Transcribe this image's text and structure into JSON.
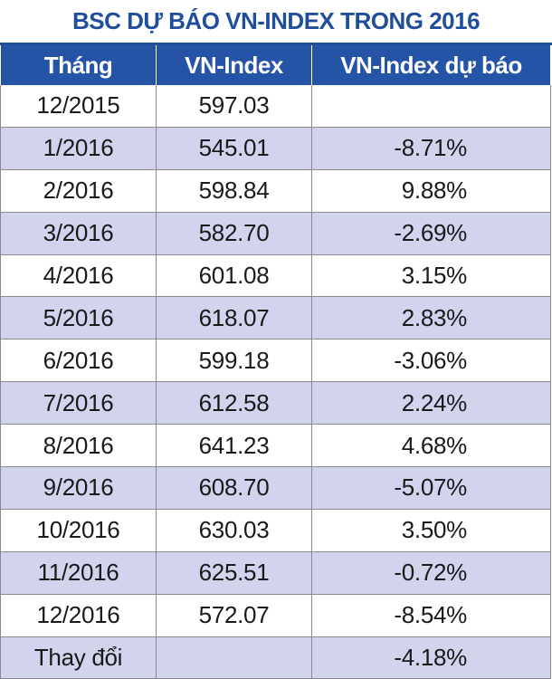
{
  "title": "BSC DỰ BÁO VN-INDEX TRONG 2016",
  "colors": {
    "title": "#1f4e9c",
    "header_bg": "#2553a6",
    "row_alt": "#d2d3ec"
  },
  "chart_data": {
    "type": "table",
    "title": "BSC DỰ BÁO VN-INDEX TRONG 2016",
    "columns": [
      "Tháng",
      "VN-Index",
      "VN-Index dự báo"
    ],
    "rows": [
      {
        "month": "12/2015",
        "vnindex": "597.03",
        "forecast": ""
      },
      {
        "month": "1/2016",
        "vnindex": "545.01",
        "forecast": "-8.71%"
      },
      {
        "month": "2/2016",
        "vnindex": "598.84",
        "forecast": "9.88%"
      },
      {
        "month": "3/2016",
        "vnindex": "582.70",
        "forecast": "-2.69%"
      },
      {
        "month": "4/2016",
        "vnindex": "601.08",
        "forecast": "3.15%"
      },
      {
        "month": "5/2016",
        "vnindex": "618.07",
        "forecast": "2.83%"
      },
      {
        "month": "6/2016",
        "vnindex": "599.18",
        "forecast": "-3.06%"
      },
      {
        "month": "7/2016",
        "vnindex": "612.58",
        "forecast": "2.24%"
      },
      {
        "month": "8/2016",
        "vnindex": "641.23",
        "forecast": "4.68%"
      },
      {
        "month": "9/2016",
        "vnindex": "608.70",
        "forecast": "-5.07%"
      },
      {
        "month": "10/2016",
        "vnindex": "630.03",
        "forecast": "3.50%"
      },
      {
        "month": "11/2016",
        "vnindex": "625.51",
        "forecast": "-0.72%"
      },
      {
        "month": "12/2016",
        "vnindex": "572.07",
        "forecast": "-8.54%"
      },
      {
        "month": "Thay đổi",
        "vnindex": "",
        "forecast": "-4.18%"
      }
    ]
  }
}
